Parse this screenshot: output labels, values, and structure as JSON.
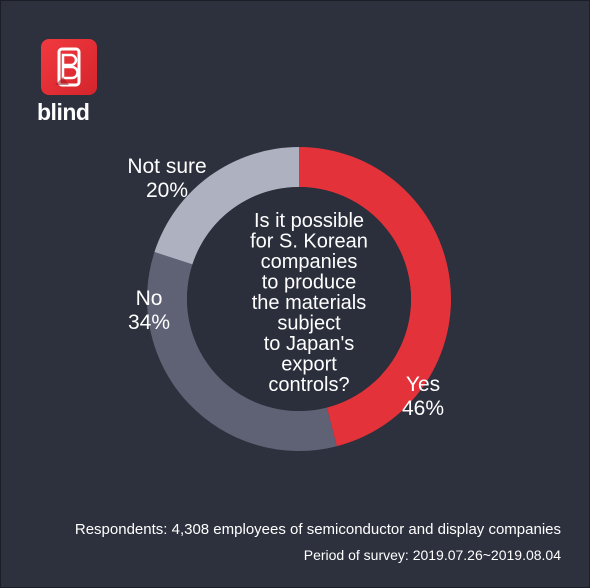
{
  "brand": {
    "name": "blind",
    "logo_letter": "B",
    "logo_color": "#e8303a"
  },
  "chart_data": {
    "type": "pie",
    "title": "Is it possible for S. Korean companies to produce the materials subject to Japan's export controls?",
    "title_lines": [
      "Is it possible",
      "for S. Korean",
      "companies",
      "to produce",
      "the materials",
      "subject",
      "to Japan's",
      "export",
      "controls?"
    ],
    "slices": [
      {
        "label": "Yes",
        "value": 46,
        "display": "46%",
        "color": "#e4323a"
      },
      {
        "label": "No",
        "value": 34,
        "display": "34%",
        "color": "#5f6275"
      },
      {
        "label": "Not sure",
        "value": 20,
        "display": "20%",
        "color": "#aeb1c0"
      }
    ]
  },
  "footer": {
    "respondents": "Respondents: 4,308 employees of semiconductor and display companies",
    "period": "Period of survey: 2019.07.26~2019.08.04"
  }
}
